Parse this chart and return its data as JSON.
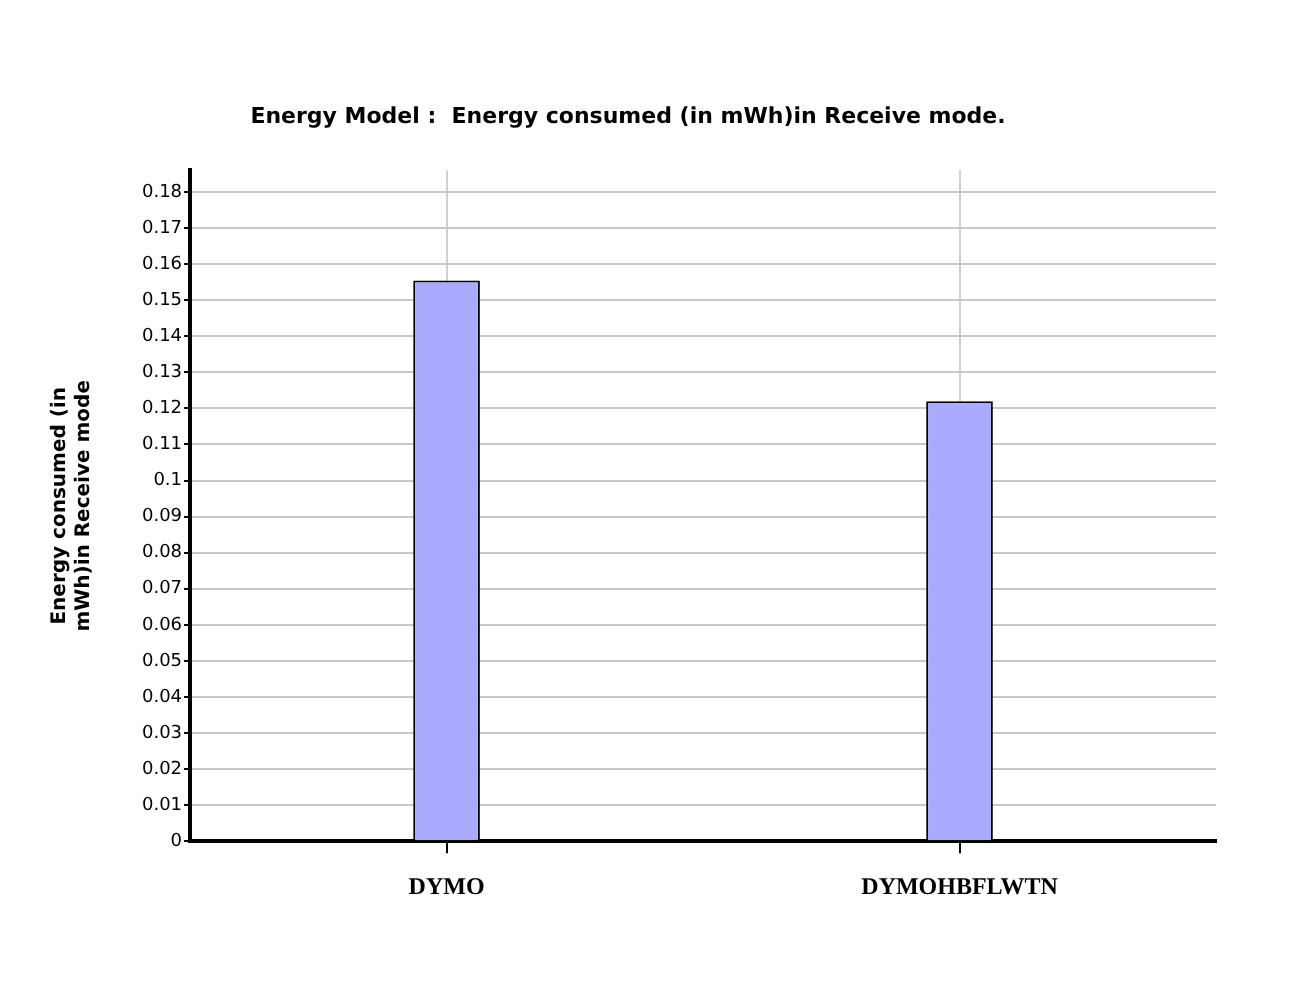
{
  "chart_data": {
    "type": "bar",
    "title": "Energy Model :  Energy consumed (in mWh)in Receive mode.",
    "ylabel": "Energy consumed (in mWh)in Receive mode",
    "categories": [
      "DYMO",
      "DYMOHBFLWTN"
    ],
    "values": [
      0.1555,
      0.122
    ],
    "color": "#aaaaff",
    "ylim": [
      0,
      0.186
    ],
    "yticks": [
      0,
      0.01,
      0.02,
      0.03,
      0.04,
      0.05,
      0.06,
      0.07,
      0.08,
      0.09,
      0.1,
      0.11,
      0.12,
      0.13,
      0.14,
      0.15,
      0.16,
      0.17,
      0.18
    ],
    "grid": true
  }
}
